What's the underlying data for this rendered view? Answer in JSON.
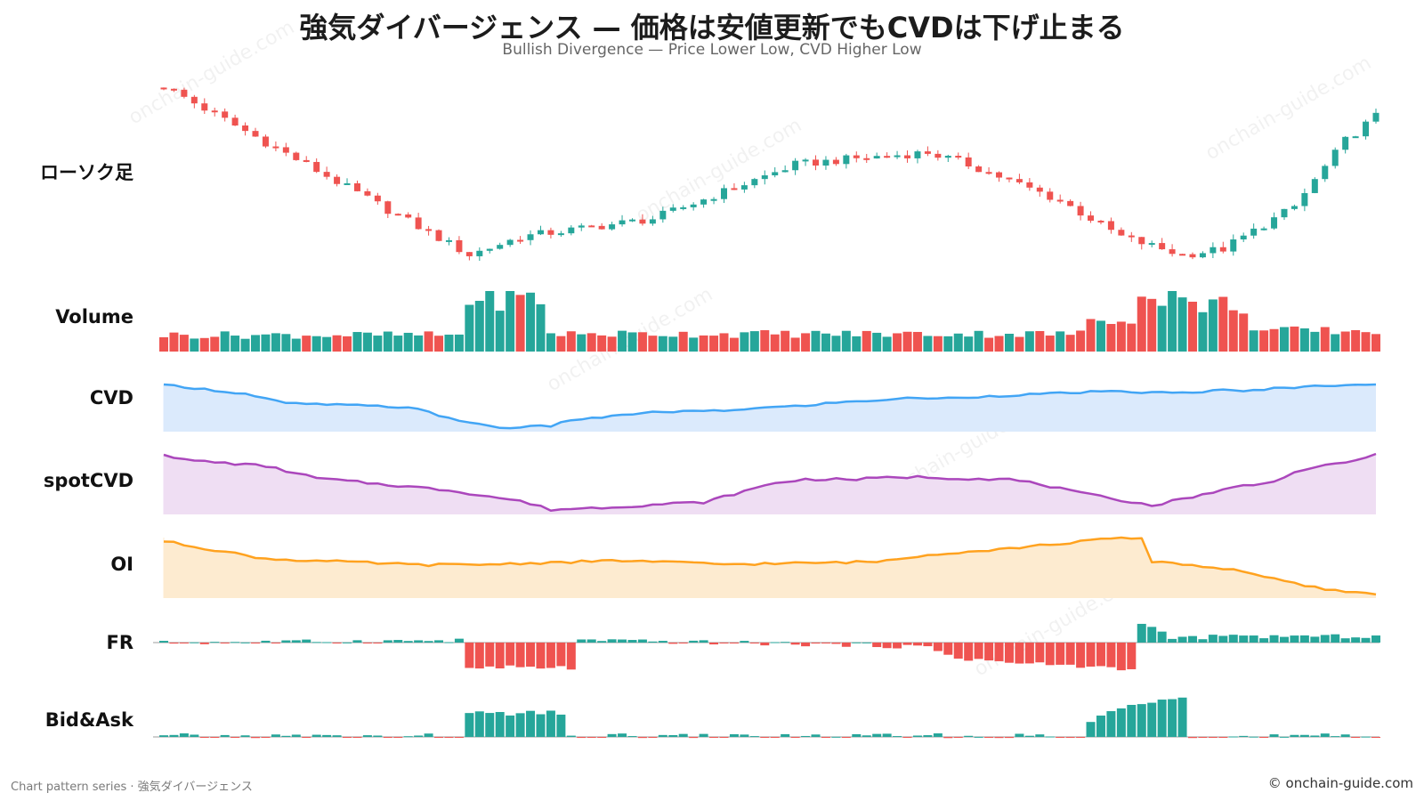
{
  "title": "強気ダイバージェンス — 価格は安値更新でもCVDは下げ止まる",
  "subtitle": "Bullish Divergence — Price Lower Low, CVD Higher Low",
  "footer": {
    "left": "Chart pattern series · 強気ダイバージェンス",
    "right": "© onchain-guide.com"
  },
  "watermark": "onchain-guide.com",
  "colors": {
    "up": "#26a69a",
    "down": "#ef5350",
    "cvd_line": "#42a5f5",
    "cvd_fill": "#dbeafc",
    "spotcvd_line": "#ab47bc",
    "spotcvd_fill": "#efdef3",
    "oi_line": "#ffa21f",
    "oi_fill": "#fdebd0",
    "zero_line": "#9e9e9e"
  },
  "chart_data": {
    "type": "multi-panel",
    "bars": 120,
    "panels": [
      {
        "key": "candles",
        "label": "ローソク足",
        "type": "candlestick",
        "anchors": [
          [
            0,
            100
          ],
          [
            30,
            72
          ],
          [
            35,
            75
          ],
          [
            48,
            78
          ],
          [
            62,
            87
          ],
          [
            68,
            88
          ],
          [
            75,
            89
          ],
          [
            79,
            87
          ],
          [
            82,
            85
          ],
          [
            88,
            81
          ],
          [
            94,
            75
          ],
          [
            100,
            72
          ],
          [
            104,
            73
          ],
          [
            111,
            80
          ],
          [
            116,
            91
          ],
          [
            119,
            95
          ]
        ]
      },
      {
        "key": "volume",
        "label": "Volume",
        "type": "bar",
        "anchors": [
          [
            0,
            28
          ],
          [
            29,
            28
          ],
          [
            30,
            90
          ],
          [
            37,
            90
          ],
          [
            38,
            30
          ],
          [
            90,
            30
          ],
          [
            91,
            55
          ],
          [
            95,
            60
          ],
          [
            96,
            85
          ],
          [
            99,
            100
          ],
          [
            100,
            80
          ],
          [
            106,
            80
          ],
          [
            107,
            35
          ],
          [
            119,
            35
          ]
        ]
      },
      {
        "key": "cvd",
        "label": "CVD",
        "type": "area",
        "anchors": [
          [
            0,
            100
          ],
          [
            8,
            80
          ],
          [
            12,
            60
          ],
          [
            20,
            55
          ],
          [
            25,
            50
          ],
          [
            27,
            32
          ],
          [
            33,
            8
          ],
          [
            38,
            12
          ],
          [
            40,
            25
          ],
          [
            44,
            32
          ],
          [
            47,
            40
          ],
          [
            51,
            43
          ],
          [
            55,
            44
          ],
          [
            58,
            50
          ],
          [
            63,
            55
          ],
          [
            65,
            60
          ],
          [
            74,
            72
          ],
          [
            76,
            70
          ],
          [
            84,
            78
          ],
          [
            92,
            85
          ],
          [
            100,
            82
          ],
          [
            104,
            88
          ],
          [
            106,
            85
          ],
          [
            109,
            92
          ],
          [
            112,
            95
          ],
          [
            116,
            100
          ],
          [
            119,
            100
          ]
        ]
      },
      {
        "key": "spotcvd",
        "label": "spotCVD",
        "type": "area",
        "anchors": [
          [
            0,
            100
          ],
          [
            2,
            90
          ],
          [
            10,
            80
          ],
          [
            15,
            60
          ],
          [
            20,
            52
          ],
          [
            28,
            40
          ],
          [
            35,
            22
          ],
          [
            38,
            8
          ],
          [
            44,
            12
          ],
          [
            50,
            18
          ],
          [
            53,
            20
          ],
          [
            60,
            52
          ],
          [
            63,
            58
          ],
          [
            68,
            58
          ],
          [
            70,
            60
          ],
          [
            74,
            62
          ],
          [
            77,
            60
          ],
          [
            83,
            58
          ],
          [
            86,
            50
          ],
          [
            90,
            35
          ],
          [
            96,
            18
          ],
          [
            97,
            14
          ],
          [
            99,
            22
          ],
          [
            106,
            48
          ],
          [
            108,
            50
          ],
          [
            112,
            75
          ],
          [
            116,
            85
          ],
          [
            119,
            100
          ]
        ]
      },
      {
        "key": "oi",
        "label": "OI",
        "type": "area",
        "anchors": [
          [
            0,
            94
          ],
          [
            10,
            65
          ],
          [
            25,
            55
          ],
          [
            30,
            55
          ],
          [
            45,
            62
          ],
          [
            55,
            56
          ],
          [
            60,
            57
          ],
          [
            70,
            60
          ],
          [
            75,
            72
          ],
          [
            80,
            78
          ],
          [
            85,
            85
          ],
          [
            94,
            100
          ],
          [
            96,
            97
          ],
          [
            95,
            99
          ],
          [
            96,
            62
          ],
          [
            98,
            60
          ],
          [
            100,
            56
          ],
          [
            106,
            45
          ],
          [
            108,
            35
          ],
          [
            112,
            20
          ],
          [
            116,
            10
          ],
          [
            119,
            8
          ]
        ]
      },
      {
        "key": "fr",
        "label": "FR",
        "type": "signed-bar",
        "anchors": [
          [
            0,
            0
          ],
          [
            29,
            5
          ],
          [
            30,
            -50
          ],
          [
            40,
            -50
          ],
          [
            41,
            5
          ],
          [
            70,
            -5
          ],
          [
            75,
            -10
          ],
          [
            78,
            -30
          ],
          [
            83,
            -40
          ],
          [
            93,
            -50
          ],
          [
            95,
            -55
          ],
          [
            96,
            50
          ],
          [
            99,
            10
          ],
          [
            104,
            15
          ],
          [
            119,
            15
          ]
        ]
      },
      {
        "key": "bidask",
        "label": "Bid&Ask",
        "type": "signed-bar",
        "anchors": [
          [
            0,
            0
          ],
          [
            29,
            0
          ],
          [
            30,
            32
          ],
          [
            39,
            32
          ],
          [
            40,
            0
          ],
          [
            90,
            0
          ],
          [
            91,
            20
          ],
          [
            94,
            40
          ],
          [
            96,
            50
          ],
          [
            100,
            60
          ],
          [
            101,
            0
          ],
          [
            119,
            0
          ]
        ]
      }
    ]
  }
}
